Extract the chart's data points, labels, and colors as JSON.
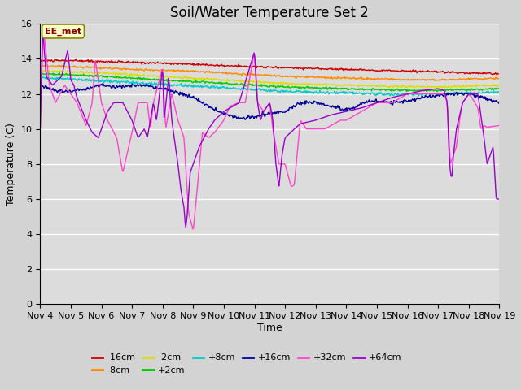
{
  "title": "Soil/Water Temperature Set 2",
  "xlabel": "Time",
  "ylabel": "Temperature (C)",
  "ylim": [
    0,
    16
  ],
  "yticks": [
    0,
    2,
    4,
    6,
    8,
    10,
    12,
    14,
    16
  ],
  "x_labels": [
    "Nov 4",
    "Nov 5",
    "Nov 6",
    "Nov 7",
    "Nov 8",
    "Nov 9",
    "Nov 10",
    "Nov 11",
    "Nov 12",
    "Nov 13",
    "Nov 14",
    "Nov 15",
    "Nov 16",
    "Nov 17",
    "Nov 18",
    "Nov 19"
  ],
  "series": [
    {
      "label": "-16cm",
      "color": "#cc0000"
    },
    {
      "label": "-8cm",
      "color": "#ff8c00"
    },
    {
      "label": "-2cm",
      "color": "#dddd00"
    },
    {
      "label": "+2cm",
      "color": "#00cc00"
    },
    {
      "label": "+8cm",
      "color": "#00cccc"
    },
    {
      "label": "+16cm",
      "color": "#000099"
    },
    {
      "label": "+32cm",
      "color": "#ff44cc"
    },
    {
      "label": "+64cm",
      "color": "#9900cc"
    }
  ],
  "annotation_text": "EE_met",
  "annotation_color": "#880000",
  "annotation_bg": "#ffffcc",
  "annotation_border": "#888800",
  "plot_bg_color": "#dcdcdc",
  "fig_bg_color": "#d3d3d3",
  "grid_color": "#ffffff",
  "title_fontsize": 12,
  "label_fontsize": 9,
  "tick_fontsize": 8
}
